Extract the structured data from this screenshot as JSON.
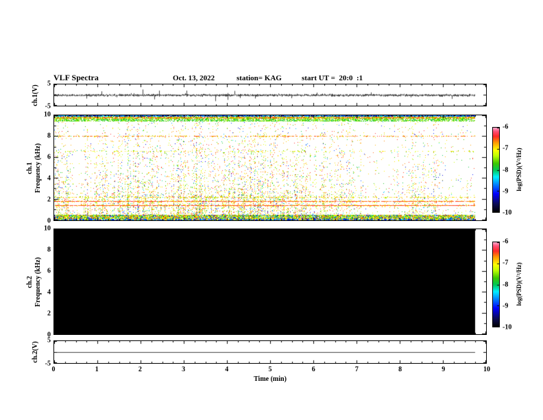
{
  "header": {
    "title": "VLF Spectra",
    "date": "Oct. 13, 2022",
    "station": "station= KAG",
    "start_ut": "start UT =  20:0  :1"
  },
  "xaxis": {
    "label": "Time (min)",
    "range": [
      0,
      10
    ],
    "ticks": [
      0,
      1,
      2,
      3,
      4,
      5,
      6,
      7,
      8,
      9,
      10
    ]
  },
  "record_length_min": 9.75,
  "chart_data": [
    {
      "panel": "ch1-waveform",
      "type": "line",
      "ylabel": "ch.1(V)",
      "ylim": [
        -5,
        5
      ],
      "ytick_labels": [
        "5",
        "-5"
      ],
      "x_range_min": [
        0,
        9.75
      ],
      "signal_summary": "continuous broadband noise around 0 V (about ±0.5 V) with frequent impulsive spikes reaching about ±3 V over the whole record"
    },
    {
      "panel": "ch1-spectrogram",
      "type": "heatmap",
      "ylabel_line1": "ch.1",
      "ylabel_line2": "Frequency (kHz)",
      "ylim": [
        0,
        10
      ],
      "yticks": [
        0,
        2,
        4,
        6,
        8,
        10
      ],
      "value_range_log_psd": [
        -10,
        -6
      ],
      "features": [
        "dense vertical red/orange sferic streaks spanning 0-10 kHz for most of the record",
        "continuous green/red band between about 9.5 and 10 kHz",
        "persistent horizontal red lines near 1.4 kHz and 1.8 kHz",
        "intermittent horizontal line near 8 kHz",
        "intense broadband multicolor strip below about 0.4 kHz"
      ],
      "colorbar": {
        "label": "log(PSD)(V²/Hz)",
        "ticks": [
          -6,
          -7,
          -8,
          -9,
          -10
        ],
        "range": [
          -10,
          -6
        ],
        "gradient_bottom_to_top": [
          "black",
          "dark blue",
          "blue",
          "cyan",
          "green",
          "yellow",
          "orange",
          "red",
          "pink"
        ]
      }
    },
    {
      "panel": "ch2-spectrogram",
      "type": "heatmap",
      "ylabel_line1": "ch.2",
      "ylabel_line2": "Frequency (kHz)",
      "ylim": [
        0,
        10
      ],
      "yticks": [
        0,
        2,
        4,
        6,
        8,
        10
      ],
      "value_range_log_psd": [
        -10,
        -6
      ],
      "features": [
        "uniform black panel: power at or below -10 (no signal) for the whole record"
      ],
      "colorbar": {
        "label": "log(PSD)(V²/Hz)",
        "ticks": [
          -6,
          -7,
          -8,
          -9,
          -10
        ],
        "range": [
          -10,
          -6
        ],
        "gradient_bottom_to_top": [
          "black",
          "dark blue",
          "blue",
          "cyan",
          "green",
          "yellow",
          "orange",
          "red",
          "pink"
        ]
      }
    },
    {
      "panel": "ch2-waveform",
      "type": "line",
      "ylabel": "ch.2(V)",
      "ylim": [
        -5,
        5
      ],
      "ytick_labels": [
        "5",
        "-5"
      ],
      "x_range_min": [
        0,
        9.75
      ],
      "signal_summary": "flat line at 0 V (no signal)"
    }
  ]
}
